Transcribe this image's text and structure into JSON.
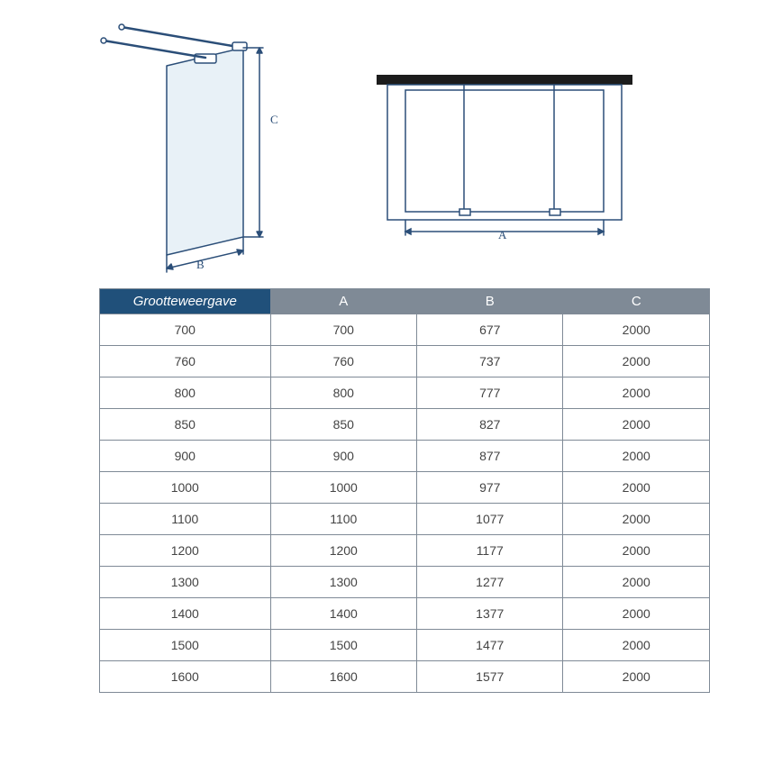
{
  "diagram": {
    "line_color": "#2b4e78",
    "panel_fill": "#dbe9f3",
    "wall_fill": "#1c1c1c",
    "labels": {
      "width": "B",
      "height": "C",
      "top": "A"
    }
  },
  "table": {
    "header_bg_main": "#20507a",
    "header_bg_col": "#7f8a96",
    "header_fg": "#ffffff",
    "border": "#7f8a96",
    "cell_fg": "#444444",
    "cell_font_size": 14,
    "columns": [
      "Grootteweergave",
      "A",
      "B",
      "C"
    ],
    "rows": [
      [
        "700",
        "700",
        "677",
        "2000"
      ],
      [
        "760",
        "760",
        "737",
        "2000"
      ],
      [
        "800",
        "800",
        "777",
        "2000"
      ],
      [
        "850",
        "850",
        "827",
        "2000"
      ],
      [
        "900",
        "900",
        "877",
        "2000"
      ],
      [
        "1000",
        "1000",
        "977",
        "2000"
      ],
      [
        "1100",
        "1100",
        "1077",
        "2000"
      ],
      [
        "1200",
        "1200",
        "1177",
        "2000"
      ],
      [
        "1300",
        "1300",
        "1277",
        "2000"
      ],
      [
        "1400",
        "1400",
        "1377",
        "2000"
      ],
      [
        "1500",
        "1500",
        "1477",
        "2000"
      ],
      [
        "1600",
        "1600",
        "1577",
        "2000"
      ]
    ]
  }
}
